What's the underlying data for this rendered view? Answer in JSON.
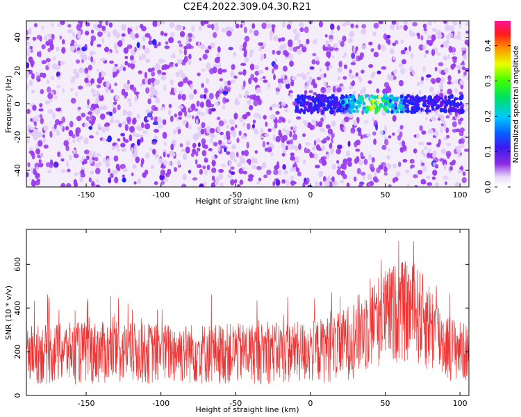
{
  "figure": {
    "title": "C2E4.2022.309.04.30.R21"
  },
  "chart_data": [
    {
      "type": "heatmap",
      "xlabel": "Height of straight line (km)",
      "ylabel": "Frequency (Hz)",
      "xlim": [
        -190,
        106
      ],
      "ylim": [
        -50,
        50
      ],
      "xticks": [
        -150,
        -100,
        -50,
        0,
        50,
        100
      ],
      "yticks": [
        -40,
        -20,
        0,
        20,
        40
      ],
      "colorbar": {
        "label": "Normalized spectral amplitude",
        "range": [
          0,
          0.47
        ],
        "ticks": [
          0.0,
          0.1,
          0.2,
          0.3,
          0.4
        ],
        "colormap": "rainbow (white-purple-blue-cyan-green-yellow-red-magenta)"
      },
      "features": [
        {
          "description": "broadband noise of purple speckles across full area"
        },
        {
          "x_range": [
            -10,
            100
          ],
          "frequency": 0,
          "note": "narrow band near 0 Hz"
        },
        {
          "x_range": [
            20,
            60
          ],
          "frequency": 0,
          "peak_amplitude": 0.35,
          "note": "strongest signal near x=45 km"
        }
      ]
    },
    {
      "type": "line",
      "xlabel": "Height of straight line (km)",
      "ylabel": "SNR (10 * v/v)",
      "xlim": [
        -190,
        106
      ],
      "ylim": [
        0,
        760
      ],
      "xticks": [
        -150,
        -100,
        -50,
        0,
        50,
        100
      ],
      "yticks": [
        0,
        200,
        400,
        600
      ],
      "series": [
        {
          "color": "#ef3333",
          "x": [
            -190,
            -150,
            -100,
            -50,
            0,
            20,
            30,
            40,
            50,
            60,
            70,
            80,
            90,
            106
          ],
          "y_low": [
            50,
            50,
            50,
            50,
            55,
            60,
            80,
            110,
            140,
            150,
            140,
            100,
            70,
            60
          ],
          "y_high": [
            320,
            340,
            330,
            330,
            340,
            380,
            450,
            520,
            580,
            620,
            600,
            520,
            380,
            320
          ],
          "note": "dense noisy SNR trace; envelope rises to ~600 between 40 and 80 km"
        }
      ]
    }
  ]
}
